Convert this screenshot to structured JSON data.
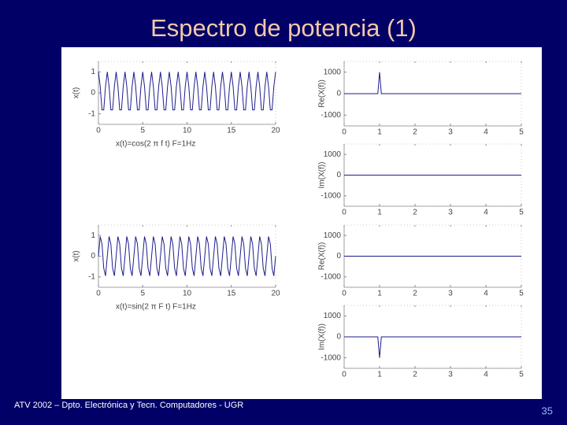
{
  "slide": {
    "title": "Espectro de potencia (1)",
    "footer": "ATV 2002 – Dpto. Electrónica y Tecn. Computadores - UGR",
    "page": "35"
  },
  "chart_data": [
    {
      "type": "line",
      "ylabel": "x(t)",
      "xlabel": "x(t)=cos(2 π f t)   F=1Hz",
      "color": "#1c1c8c",
      "x": [
        0,
        0.2,
        0.4,
        0.6,
        0.8,
        1,
        1.2,
        1.4,
        1.6,
        1.8,
        2,
        2.2,
        2.4,
        2.6,
        2.8,
        3,
        3.2,
        3.4,
        3.6,
        3.8,
        4,
        4.2,
        4.4,
        4.6,
        4.8,
        5,
        5.2,
        5.4,
        5.6,
        5.8,
        6,
        6.2,
        6.4,
        6.6,
        6.8,
        7,
        7.2,
        7.4,
        7.6,
        7.8,
        8,
        8.2,
        8.4,
        8.6,
        8.8,
        9,
        9.2,
        9.4,
        9.6,
        9.8,
        10,
        10.2,
        10.4,
        10.6,
        10.8,
        11,
        11.2,
        11.4,
        11.6,
        11.8,
        12,
        12.2,
        12.4,
        12.6,
        12.8,
        13,
        13.2,
        13.4,
        13.6,
        13.8,
        14,
        14.2,
        14.4,
        14.6,
        14.8,
        15,
        15.2,
        15.4,
        15.6,
        15.8,
        16,
        16.2,
        16.4,
        16.6,
        16.8,
        17,
        17.2,
        17.4,
        17.6,
        17.8,
        18,
        18.2,
        18.4,
        18.6,
        18.8,
        19,
        19.2,
        19.4,
        19.6,
        19.8,
        20
      ],
      "values": [
        1,
        0.309,
        -0.809,
        -0.809,
        0.309,
        1,
        0.309,
        -0.809,
        -0.809,
        0.309,
        1,
        0.309,
        -0.809,
        -0.809,
        0.309,
        1,
        0.309,
        -0.809,
        -0.809,
        0.309,
        1,
        0.309,
        -0.809,
        -0.809,
        0.309,
        1,
        0.309,
        -0.809,
        -0.809,
        0.309,
        1,
        0.309,
        -0.809,
        -0.809,
        0.309,
        1,
        0.309,
        -0.809,
        -0.809,
        0.309,
        1,
        0.309,
        -0.809,
        -0.809,
        0.309,
        1,
        0.309,
        -0.809,
        -0.809,
        0.309,
        1,
        0.309,
        -0.809,
        -0.809,
        0.309,
        1,
        0.309,
        -0.809,
        -0.809,
        0.309,
        1,
        0.309,
        -0.809,
        -0.809,
        0.309,
        1,
        0.309,
        -0.809,
        -0.809,
        0.309,
        1,
        0.309,
        -0.809,
        -0.809,
        0.309,
        1,
        0.309,
        -0.809,
        -0.809,
        0.309,
        1,
        0.309,
        -0.809,
        -0.809,
        0.309,
        1,
        0.309,
        -0.809,
        -0.809,
        0.309,
        1,
        0.309,
        -0.809,
        -0.809,
        0.309,
        1,
        0.309,
        -0.809,
        -0.809,
        0.309,
        1
      ],
      "xlim": [
        0,
        20
      ],
      "xticks": [
        0,
        5,
        10,
        15,
        20
      ],
      "ylim": [
        -1.5,
        1.5
      ],
      "yticks": [
        -1,
        0,
        1
      ]
    },
    {
      "type": "line",
      "ylabel": "Re(X(f))",
      "color": "#1c1c8c",
      "x": [
        0,
        0.95,
        1,
        1.05,
        5
      ],
      "values": [
        0,
        0,
        1000,
        0,
        0
      ],
      "xlim": [
        0,
        5
      ],
      "xticks": [
        0,
        1,
        2,
        3,
        4,
        5
      ],
      "ylim": [
        -1500,
        1500
      ],
      "yticks": [
        -1000,
        0,
        1000
      ]
    },
    {
      "type": "line",
      "ylabel": "Im(X(f))",
      "color": "#1c1c8c",
      "x": [
        0,
        5
      ],
      "values": [
        0,
        0
      ],
      "xlim": [
        0,
        5
      ],
      "xticks": [
        0,
        1,
        2,
        3,
        4,
        5
      ],
      "ylim": [
        -1500,
        1500
      ],
      "yticks": [
        -1000,
        0,
        1000
      ]
    },
    {
      "type": "line",
      "ylabel": "x(t)",
      "xlabel": "x(t)=sin(2 π F t)   F=1Hz",
      "color": "#1c1c8c",
      "x": [
        0,
        0.2,
        0.4,
        0.6,
        0.8,
        1,
        1.2,
        1.4,
        1.6,
        1.8,
        2,
        2.2,
        2.4,
        2.6,
        2.8,
        3,
        3.2,
        3.4,
        3.6,
        3.8,
        4,
        4.2,
        4.4,
        4.6,
        4.8,
        5,
        5.2,
        5.4,
        5.6,
        5.8,
        6,
        6.2,
        6.4,
        6.6,
        6.8,
        7,
        7.2,
        7.4,
        7.6,
        7.8,
        8,
        8.2,
        8.4,
        8.6,
        8.8,
        9,
        9.2,
        9.4,
        9.6,
        9.8,
        10,
        10.2,
        10.4,
        10.6,
        10.8,
        11,
        11.2,
        11.4,
        11.6,
        11.8,
        12,
        12.2,
        12.4,
        12.6,
        12.8,
        13,
        13.2,
        13.4,
        13.6,
        13.8,
        14,
        14.2,
        14.4,
        14.6,
        14.8,
        15,
        15.2,
        15.4,
        15.6,
        15.8,
        16,
        16.2,
        16.4,
        16.6,
        16.8,
        17,
        17.2,
        17.4,
        17.6,
        17.8,
        18,
        18.2,
        18.4,
        18.6,
        18.8,
        19,
        19.2,
        19.4,
        19.6,
        19.8,
        20
      ],
      "values": [
        0,
        0.951,
        0.588,
        -0.588,
        -0.951,
        0,
        0.951,
        0.588,
        -0.588,
        -0.951,
        0,
        0.951,
        0.588,
        -0.588,
        -0.951,
        0,
        0.951,
        0.588,
        -0.588,
        -0.951,
        0,
        0.951,
        0.588,
        -0.588,
        -0.951,
        0,
        0.951,
        0.588,
        -0.588,
        -0.951,
        0,
        0.951,
        0.588,
        -0.588,
        -0.951,
        0,
        0.951,
        0.588,
        -0.588,
        -0.951,
        0,
        0.951,
        0.588,
        -0.588,
        -0.951,
        0,
        0.951,
        0.588,
        -0.588,
        -0.951,
        0,
        0.951,
        0.588,
        -0.588,
        -0.951,
        0,
        0.951,
        0.588,
        -0.588,
        -0.951,
        0,
        0.951,
        0.588,
        -0.588,
        -0.951,
        0,
        0.951,
        0.588,
        -0.588,
        -0.951,
        0,
        0.951,
        0.588,
        -0.588,
        -0.951,
        0,
        0.951,
        0.588,
        -0.588,
        -0.951,
        0,
        0.951,
        0.588,
        -0.588,
        -0.951,
        0,
        0.951,
        0.588,
        -0.588,
        -0.951,
        0,
        0.951,
        0.588,
        -0.588,
        -0.951,
        0,
        0.951,
        0.588,
        -0.588,
        -0.951,
        0
      ],
      "xlim": [
        0,
        20
      ],
      "xticks": [
        0,
        5,
        10,
        15,
        20
      ],
      "ylim": [
        -1.5,
        1.5
      ],
      "yticks": [
        -1,
        0,
        1
      ]
    },
    {
      "type": "line",
      "ylabel": "Re(X(f))",
      "color": "#1c1c8c",
      "x": [
        0,
        5
      ],
      "values": [
        0,
        0
      ],
      "xlim": [
        0,
        5
      ],
      "xticks": [
        0,
        1,
        2,
        3,
        4,
        5
      ],
      "ylim": [
        -1500,
        1500
      ],
      "yticks": [
        -1000,
        0,
        1000
      ]
    },
    {
      "type": "line",
      "ylabel": "Im(X(f))",
      "color": "#1c1c8c",
      "x": [
        0,
        0.95,
        1,
        1.05,
        5
      ],
      "values": [
        0,
        0,
        -1000,
        0,
        0
      ],
      "xlim": [
        0,
        5
      ],
      "xticks": [
        0,
        1,
        2,
        3,
        4,
        5
      ],
      "ylim": [
        -1500,
        1500
      ],
      "yticks": [
        -1000,
        0,
        1000
      ]
    }
  ]
}
